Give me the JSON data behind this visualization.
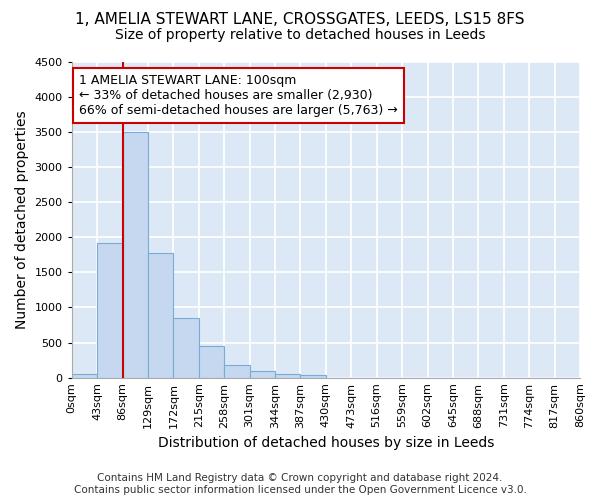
{
  "title": "1, AMELIA STEWART LANE, CROSSGATES, LEEDS, LS15 8FS",
  "subtitle": "Size of property relative to detached houses in Leeds",
  "xlabel": "Distribution of detached houses by size in Leeds",
  "ylabel": "Number of detached properties",
  "footer_line1": "Contains HM Land Registry data © Crown copyright and database right 2024.",
  "footer_line2": "Contains public sector information licensed under the Open Government Licence v3.0.",
  "bin_labels": [
    "0sqm",
    "43sqm",
    "86sqm",
    "129sqm",
    "172sqm",
    "215sqm",
    "258sqm",
    "301sqm",
    "344sqm",
    "387sqm",
    "430sqm",
    "473sqm",
    "516sqm",
    "559sqm",
    "602sqm",
    "645sqm",
    "688sqm",
    "731sqm",
    "774sqm",
    "817sqm",
    "860sqm"
  ],
  "bar_values": [
    50,
    1920,
    3500,
    1775,
    850,
    450,
    175,
    90,
    55,
    40,
    0,
    0,
    0,
    0,
    0,
    0,
    0,
    0,
    0,
    0
  ],
  "bar_color": "#c5d8f0",
  "bar_edgecolor": "#7aabd4",
  "ylim": [
    0,
    4500
  ],
  "yticks": [
    0,
    500,
    1000,
    1500,
    2000,
    2500,
    3000,
    3500,
    4000,
    4500
  ],
  "property_line_x": 2,
  "property_line_color": "#cc0000",
  "annotation_text": "1 AMELIA STEWART LANE: 100sqm\n← 33% of detached houses are smaller (2,930)\n66% of semi-detached houses are larger (5,763) →",
  "annotation_box_color": "white",
  "annotation_box_edgecolor": "#cc0000",
  "fig_background_color": "#ffffff",
  "plot_background_color": "#dce8f5",
  "grid_color": "#ffffff",
  "title_fontsize": 11,
  "subtitle_fontsize": 10,
  "axis_label_fontsize": 10,
  "tick_fontsize": 8,
  "annotation_fontsize": 9,
  "footer_fontsize": 7.5
}
